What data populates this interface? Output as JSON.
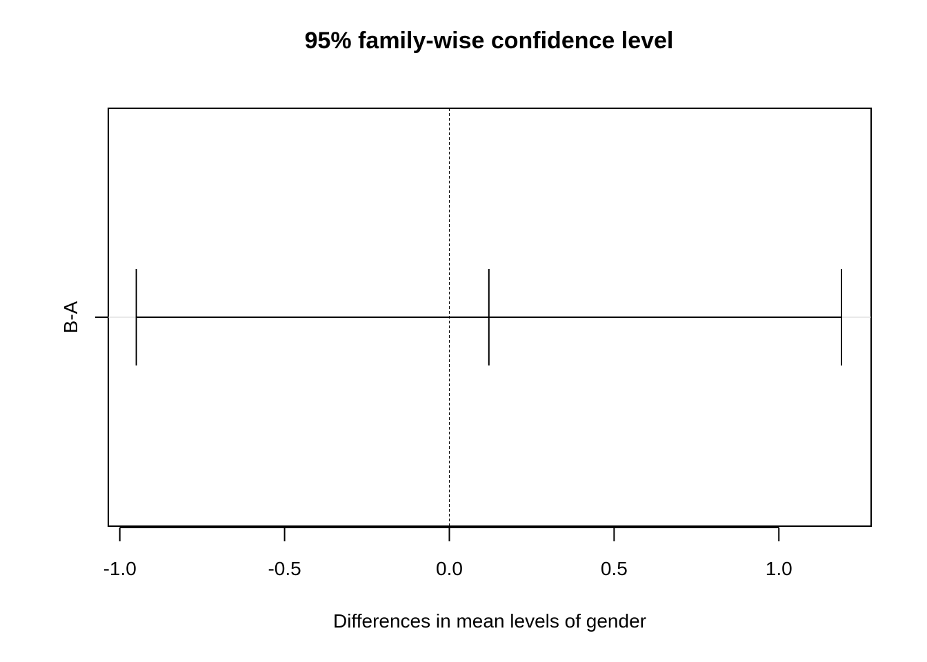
{
  "chart_data": {
    "type": "errorbar",
    "title": "95% family-wise confidence level",
    "xlabel": "Differences in mean levels of gender",
    "ylabel": "",
    "xlim": [
      -1.035,
      1.28
    ],
    "xticks": [
      -1.0,
      -0.5,
      0.0,
      0.5,
      1.0
    ],
    "xtick_labels": [
      "-1.0",
      "-0.5",
      "0.0",
      "0.5",
      "1.0"
    ],
    "reference_line": {
      "x": 0.0,
      "style": "dashed"
    },
    "comparisons": [
      {
        "label": "B-A",
        "lwr": -0.95,
        "diff": 0.12,
        "upr": 1.19
      }
    ],
    "grid": false,
    "colors": {
      "line": "#000000",
      "ref_line": "#000000",
      "row_guide": "#d3d3d3"
    }
  }
}
